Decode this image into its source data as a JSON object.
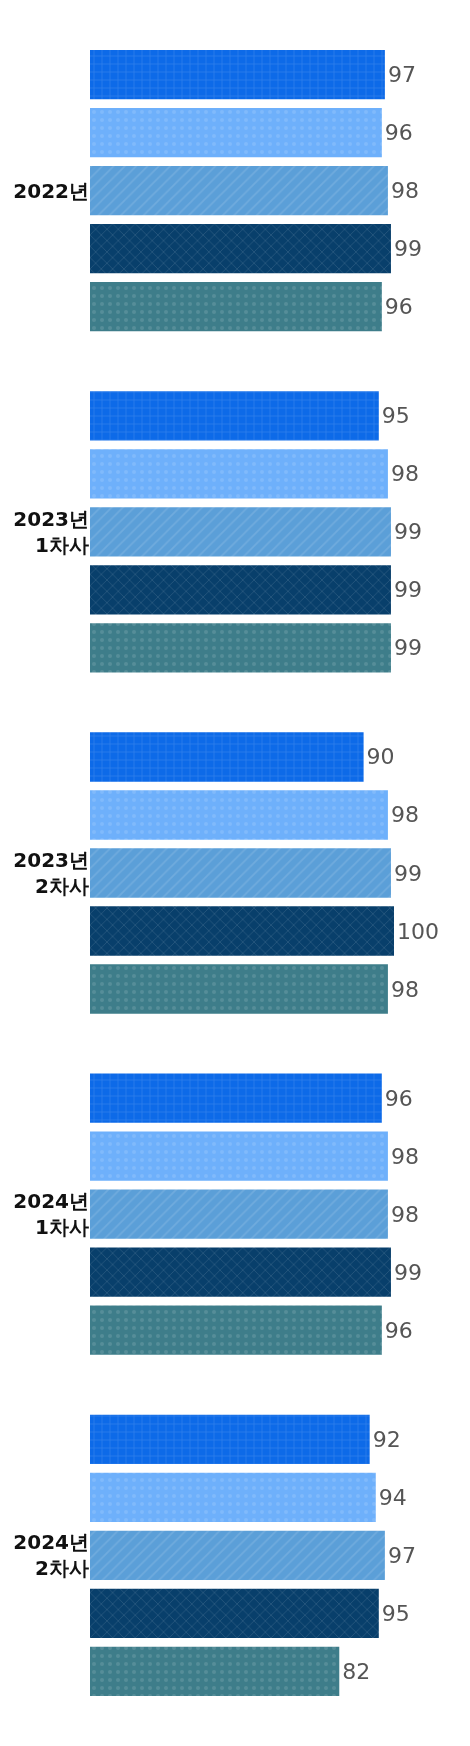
{
  "chart_data": {
    "type": "bar",
    "orientation": "horizontal",
    "categories": [
      "2022년",
      "2023년\n1차사",
      "2023년\n2차사",
      "2024년\n1차사",
      "2024년\n2차사"
    ],
    "series": [
      {
        "color": "#0d6ae8",
        "values": [
          97,
          95,
          90,
          96,
          92
        ]
      },
      {
        "color": "#6eb0fb",
        "values": [
          96,
          98,
          98,
          98,
          94
        ]
      },
      {
        "color": "#5b9fd8",
        "values": [
          98,
          99,
          99,
          98,
          97
        ]
      },
      {
        "color": "#083f6b",
        "values": [
          99,
          99,
          100,
          99,
          95
        ]
      },
      {
        "color": "#3e7d8a",
        "values": [
          96,
          99,
          98,
          96,
          82
        ]
      }
    ],
    "data_labels": true,
    "tick_labels": "y"
  }
}
